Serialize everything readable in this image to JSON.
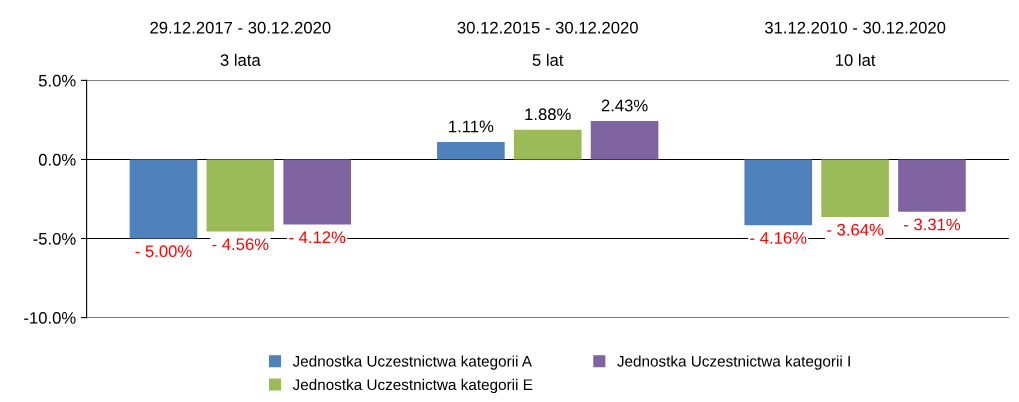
{
  "chart_data": {
    "type": "bar",
    "categories": [
      "29.12.2017 - 30.12.2020\n3 lata",
      "30.12.2015 - 30.12.2020\n5 lat",
      "31.12.2010 - 30.12.2020\n10 lat"
    ],
    "series": [
      {
        "name": "Jednostka Uczestnictwa kategorii A",
        "color": "#4f81bd",
        "values": [
          -5.0,
          1.11,
          -4.16
        ],
        "value_labels": [
          "- 5.00%",
          "1.11%",
          "- 4.16%"
        ]
      },
      {
        "name": "Jednostka Uczestnictwa kategorii E",
        "color": "#9bbb59",
        "values": [
          -4.56,
          1.88,
          -3.64
        ],
        "value_labels": [
          "- 4.56%",
          "1.88%",
          "- 3.64%"
        ]
      },
      {
        "name": "Jednostka Uczestnictwa kategorii I",
        "color": "#8064a2",
        "values": [
          -4.12,
          2.43,
          -3.31
        ],
        "value_labels": [
          "- 4.12%",
          "2.43%",
          "- 3.31%"
        ]
      }
    ],
    "ylim": [
      -10,
      5
    ],
    "yticks": [
      {
        "value": -10,
        "label": "-10.0%"
      },
      {
        "value": -5,
        "label": "-5.0%"
      },
      {
        "value": 0,
        "label": "0.0%"
      },
      {
        "value": 5,
        "label": "5.0%"
      }
    ],
    "grid": "y",
    "legend": "bottom"
  }
}
